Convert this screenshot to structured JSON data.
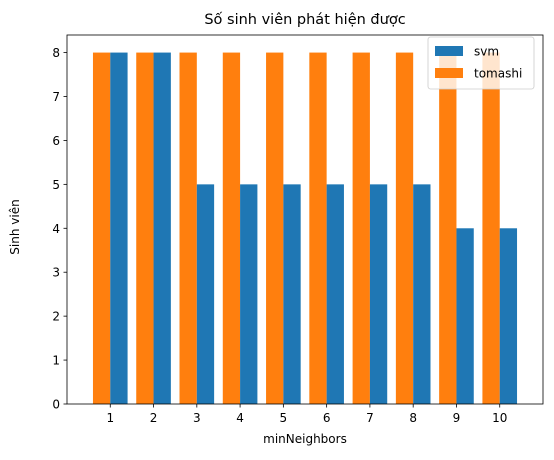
{
  "chart_data": {
    "type": "bar",
    "title": "Số sinh viên phát hiện được",
    "xlabel": "minNeighbors",
    "ylabel": "Sinh viên",
    "categories": [
      "1",
      "2",
      "3",
      "4",
      "5",
      "6",
      "7",
      "8",
      "9",
      "10"
    ],
    "series": [
      {
        "name": "svm",
        "values": [
          8,
          8,
          5,
          5,
          5,
          5,
          5,
          5,
          4,
          4
        ],
        "color": "#1f77b4"
      },
      {
        "name": "tomashi",
        "values": [
          8,
          8,
          8,
          8,
          8,
          8,
          8,
          8,
          8,
          8
        ],
        "color": "#ff7f0e"
      }
    ],
    "ylim": [
      0,
      8.4
    ],
    "yticks": [
      0,
      1,
      2,
      3,
      4,
      5,
      6,
      7,
      8
    ],
    "grid": false,
    "legend_position": "top-right"
  }
}
